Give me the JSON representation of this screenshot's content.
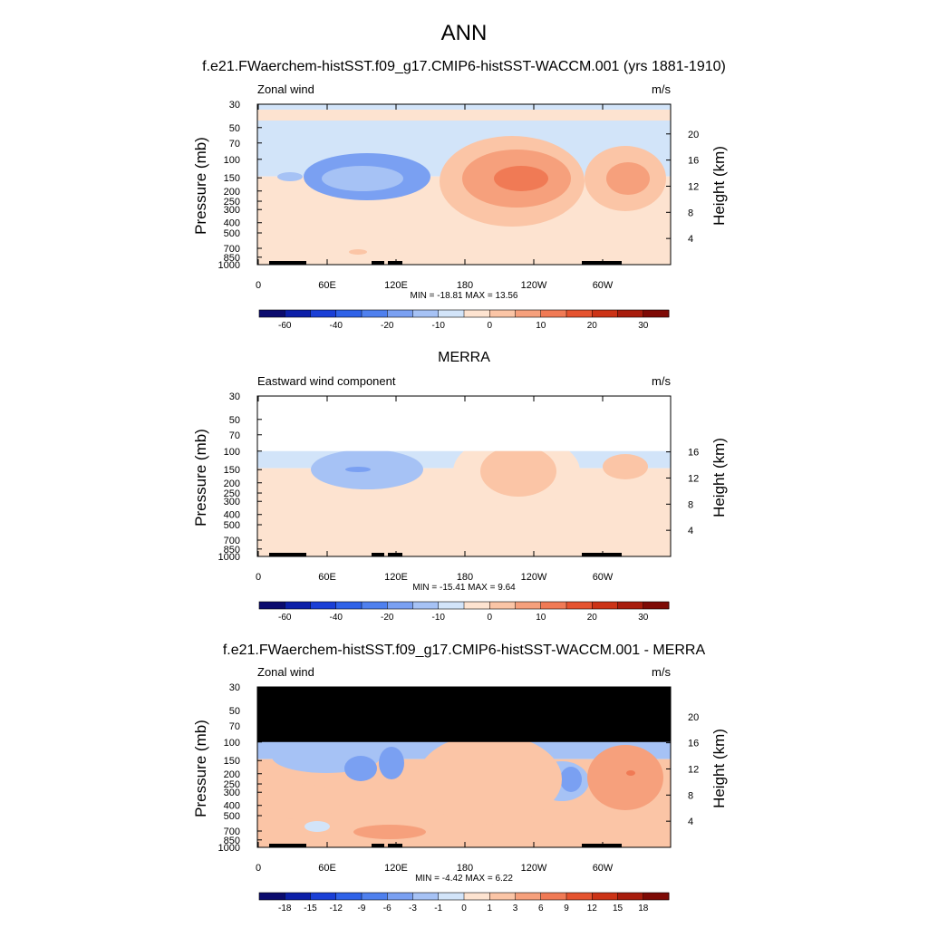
{
  "title": "ANN",
  "colors": {
    "diverging_palette": [
      "#0b0b6e",
      "#0c1fa8",
      "#1a3fd6",
      "#2f62e8",
      "#4f80ee",
      "#7aa0f2",
      "#a6c2f5",
      "#d2e4f9",
      "#fde3d0",
      "#fbc5a6",
      "#f6a07c",
      "#f07a55",
      "#e5532f",
      "#cc3316",
      "#a81c0c",
      "#7e0a05"
    ],
    "background": "#ffffff",
    "missing_fill": "#000000"
  },
  "chart_data": [
    {
      "type": "heatmap",
      "case_title": "f.e21.FWaerchem-histSST.f09_g17.CMIP6-histSST-WACCM.001 (yrs 1881-1910)",
      "left_label": "Zonal wind",
      "units": "m/s",
      "xlabel": "",
      "ylabel": "Pressure (mb)",
      "ylabel_right": "Height (km)",
      "xticks": [
        "0",
        "60E",
        "120E",
        "180",
        "120W",
        "60W"
      ],
      "yticks": [
        "30",
        "50",
        "70",
        "100",
        "150",
        "200",
        "250",
        "300",
        "400",
        "500",
        "700",
        "850",
        "1000"
      ],
      "yticks_right": [
        "20",
        "16",
        "12",
        "8",
        "4"
      ],
      "y_range_mb": [
        1000,
        30
      ],
      "stats": "MIN = -18.81  MAX =  13.56",
      "min": -18.81,
      "max": 13.56,
      "colorbar_labels": [
        "-60",
        "-40",
        "-20",
        "-10",
        "0",
        "10",
        "20",
        "30"
      ],
      "colorbar_levels": [
        -70,
        -60,
        -50,
        -40,
        -30,
        -20,
        -15,
        -10,
        -5,
        0,
        5,
        10,
        15,
        20,
        25,
        30,
        35
      ]
    },
    {
      "type": "heatmap",
      "case_title": "MERRA",
      "left_label": "Eastward wind component",
      "units": "m/s",
      "xlabel": "",
      "ylabel": "Pressure (mb)",
      "ylabel_right": "Height (km)",
      "xticks": [
        "0",
        "60E",
        "120E",
        "180",
        "120W",
        "60W"
      ],
      "yticks": [
        "30",
        "50",
        "70",
        "100",
        "150",
        "200",
        "250",
        "300",
        "400",
        "500",
        "700",
        "850",
        "1000"
      ],
      "yticks_right": [
        "16",
        "12",
        "8",
        "4"
      ],
      "y_range_mb": [
        1000,
        30
      ],
      "data_top_mb": 100,
      "stats": "MIN = -15.41  MAX =   9.64",
      "min": -15.41,
      "max": 9.64,
      "colorbar_labels": [
        "-60",
        "-40",
        "-20",
        "-10",
        "0",
        "10",
        "20",
        "30"
      ],
      "colorbar_levels": [
        -70,
        -60,
        -50,
        -40,
        -30,
        -20,
        -15,
        -10,
        -5,
        0,
        5,
        10,
        15,
        20,
        25,
        30,
        35
      ]
    },
    {
      "type": "heatmap",
      "case_title": "f.e21.FWaerchem-histSST.f09_g17.CMIP6-histSST-WACCM.001 - MERRA",
      "left_label": "Zonal wind",
      "units": "m/s",
      "xlabel": "",
      "ylabel": "Pressure (mb)",
      "ylabel_right": "Height (km)",
      "xticks": [
        "0",
        "60E",
        "120E",
        "180",
        "120W",
        "60W"
      ],
      "yticks": [
        "30",
        "50",
        "70",
        "100",
        "150",
        "200",
        "250",
        "300",
        "400",
        "500",
        "700",
        "850",
        "1000"
      ],
      "yticks_right": [
        "20",
        "16",
        "12",
        "8",
        "4"
      ],
      "y_range_mb": [
        1000,
        30
      ],
      "missing_above_mb": 100,
      "stats": "MIN =  -4.42  MAX =  6.22",
      "min": -4.42,
      "max": 6.22,
      "colorbar_labels": [
        "-18",
        "-15",
        "-12",
        "-9",
        "-6",
        "-3",
        "-1",
        "0",
        "1",
        "3",
        "6",
        "9",
        "12",
        "15",
        "18"
      ],
      "colorbar_levels": [
        -21,
        -18,
        -15,
        -12,
        -9,
        -6,
        -3,
        -1,
        0,
        1,
        3,
        6,
        9,
        12,
        15,
        18,
        21
      ]
    }
  ]
}
